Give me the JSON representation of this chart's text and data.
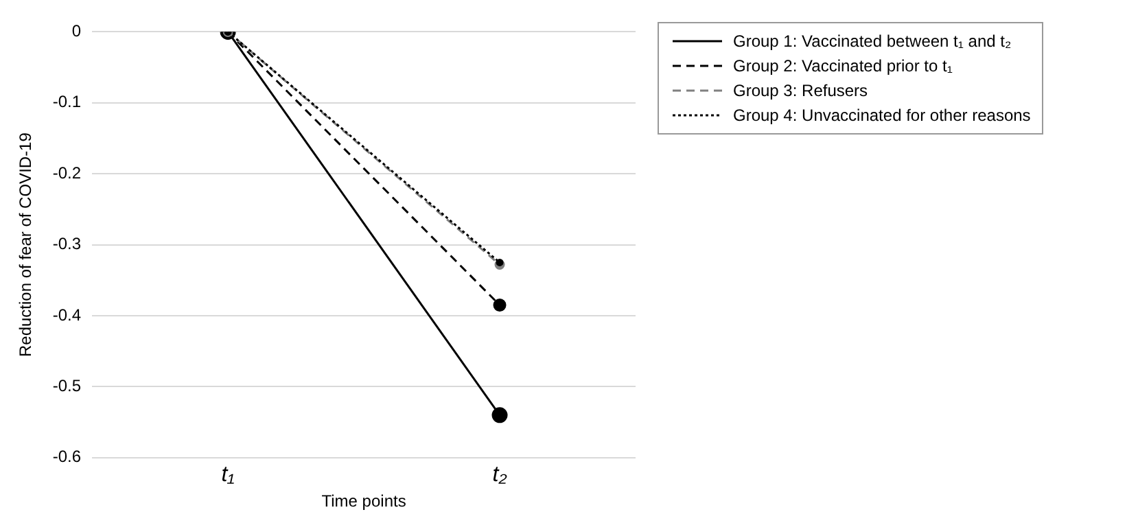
{
  "chart_data": {
    "type": "line",
    "ylabel": "Reduction of fear of COVID-19",
    "xlabel": "Time points",
    "categories": [
      "t₁",
      "t₂"
    ],
    "series": [
      {
        "name": "Group 1: Vaccinated between t₁ and t₂",
        "color": "#000000",
        "line_style": "solid",
        "values": [
          0,
          -0.54
        ]
      },
      {
        "name": "Group 2: Vaccinated prior to t₁",
        "color": "#000000",
        "line_style": "dashed",
        "values": [
          0,
          -0.385
        ]
      },
      {
        "name": "Group 3: Refusers",
        "color": "#808080",
        "line_style": "dashed",
        "values": [
          0,
          -0.328
        ]
      },
      {
        "name": "Group 4: Unvaccinated for other reasons",
        "color": "#000000",
        "line_style": "dotted",
        "values": [
          0,
          -0.325
        ]
      }
    ],
    "ylim": [
      -0.6,
      0
    ],
    "yticks": [
      0,
      -0.1,
      -0.2,
      -0.3,
      -0.4,
      -0.5,
      -0.6
    ],
    "grid": "y",
    "legend": "right",
    "marker": "circle"
  }
}
